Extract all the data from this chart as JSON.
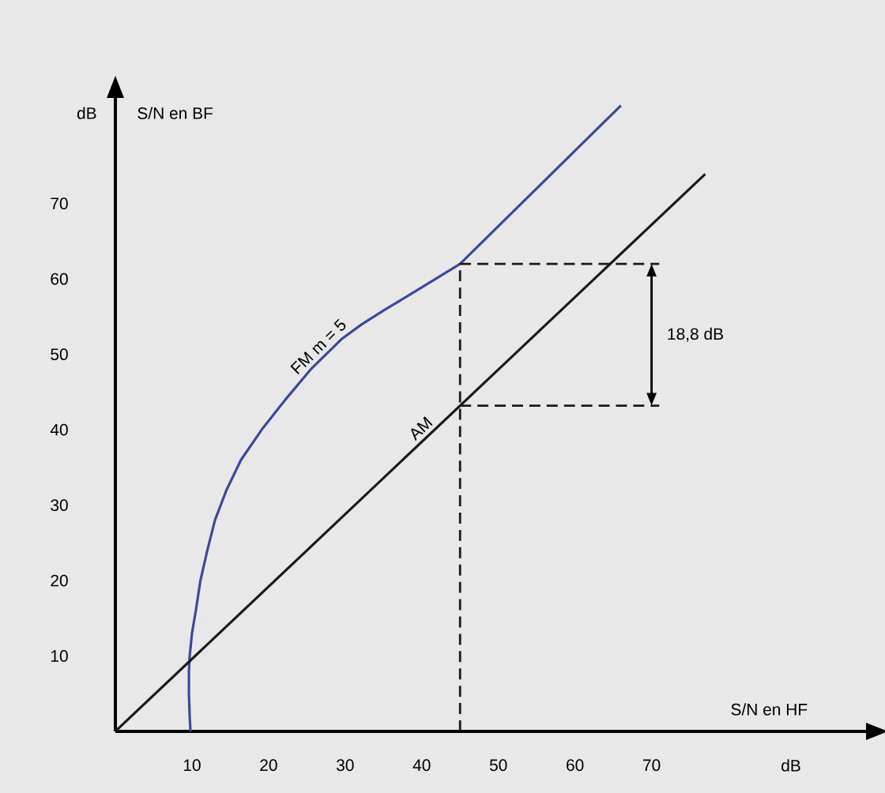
{
  "chart_data": {
    "type": "line",
    "xlabel": "S/N en HF",
    "ylabel": "S/N en BF",
    "annotations": [
      "dB",
      "dB",
      "18,8 dB"
    ],
    "xlim": [
      0,
      98
    ],
    "ylim": [
      0,
      84
    ],
    "xticks": [
      10,
      20,
      30,
      40,
      50,
      60,
      70
    ],
    "yticks": [
      10,
      20,
      30,
      40,
      50,
      60,
      70
    ],
    "grid": false,
    "legend": false,
    "marker": "none",
    "series": [
      {
        "name": "FM m = 5",
        "color": "#3a4a9a",
        "x": [
          9.8,
          9.7,
          9.6,
          9.6,
          9.7,
          10,
          10.5,
          11.1,
          12,
          13,
          14.5,
          16.4,
          19.1,
          22.2,
          25.5,
          29.5,
          32.2,
          35.3,
          38.6,
          41.8,
          45,
          55,
          66
        ],
        "values": [
          0,
          2,
          5,
          8,
          10,
          13,
          16,
          20,
          24,
          28,
          32,
          36,
          40,
          44,
          48,
          52,
          54,
          56,
          58,
          60,
          62,
          72,
          83
        ]
      },
      {
        "name": "AM",
        "color": "#1a1a1a",
        "x": [
          0,
          77
        ],
        "values": [
          0,
          73.9
        ]
      },
      {
        "color": "#1a1a1a",
        "line_style": "dashed",
        "x": [
          45,
          45,
          71
        ],
        "values": [
          0,
          62,
          62
        ]
      },
      {
        "color": "#1a1a1a",
        "line_style": "dashed",
        "x": [
          45,
          71
        ],
        "values": [
          43.2,
          43.2
        ]
      }
    ]
  }
}
